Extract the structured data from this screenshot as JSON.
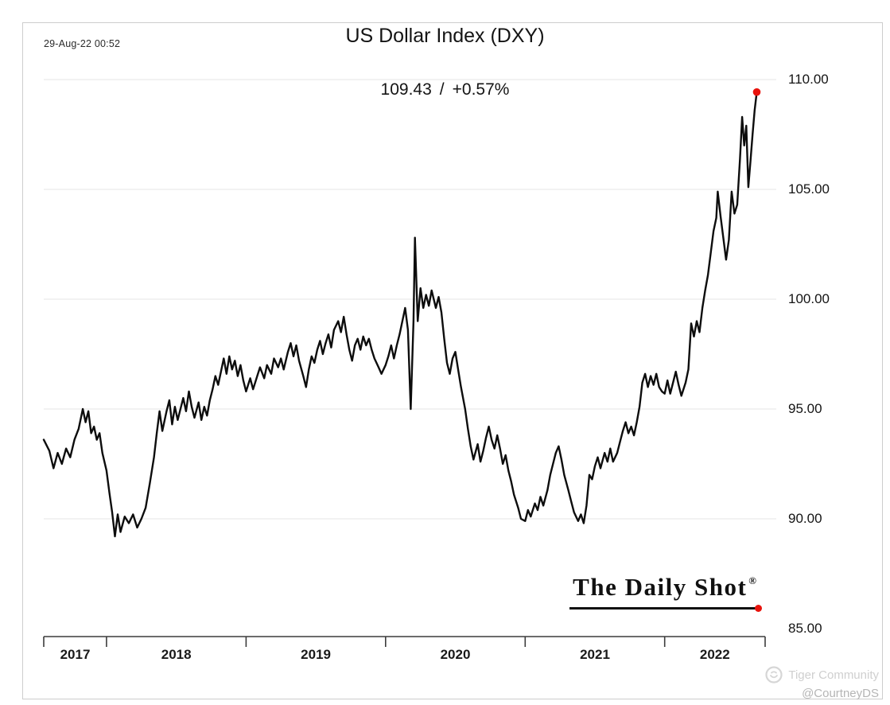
{
  "meta": {
    "timestamp": "29-Aug-22 00:52"
  },
  "title": "US Dollar Index (DXY)",
  "quote": {
    "price": "109.43",
    "separator": "/",
    "change": "+0.57%"
  },
  "branding": {
    "logo_text": "The Daily Shot",
    "registered": "®"
  },
  "watermark": {
    "community": "Tiger Community",
    "handle": "@CourtneyDS"
  },
  "chart_data": {
    "type": "line",
    "title": "US Dollar Index (DXY)",
    "subtitle": "109.43 / +0.57%",
    "x_unit": "decimal_year",
    "x_range": [
      2017.55,
      2022.72
    ],
    "y_range": [
      85,
      110
    ],
    "y_ticks": [
      85,
      90,
      95,
      100,
      105,
      110
    ],
    "y_tick_labels": [
      "85.00",
      "90.00",
      "95.00",
      "100.00",
      "105.00",
      "110.00"
    ],
    "x_tick_labels": [
      "2017",
      "2018",
      "2019",
      "2020",
      "2021",
      "2022"
    ],
    "grid": "horizontal",
    "legend": "none",
    "line_color": "#0d0d0d",
    "last_point_marker_color": "#e8130c",
    "last_value": 109.43,
    "points": [
      [
        2017.55,
        93.6
      ],
      [
        2017.59,
        93.1
      ],
      [
        2017.62,
        92.3
      ],
      [
        2017.65,
        93.0
      ],
      [
        2017.68,
        92.5
      ],
      [
        2017.71,
        93.2
      ],
      [
        2017.74,
        92.8
      ],
      [
        2017.77,
        93.6
      ],
      [
        2017.8,
        94.1
      ],
      [
        2017.83,
        95.0
      ],
      [
        2017.85,
        94.4
      ],
      [
        2017.87,
        94.9
      ],
      [
        2017.89,
        93.9
      ],
      [
        2017.91,
        94.2
      ],
      [
        2017.93,
        93.6
      ],
      [
        2017.95,
        93.9
      ],
      [
        2017.97,
        93.0
      ],
      [
        2018.0,
        92.2
      ],
      [
        2018.02,
        91.2
      ],
      [
        2018.04,
        90.3
      ],
      [
        2018.06,
        89.2
      ],
      [
        2018.08,
        90.2
      ],
      [
        2018.1,
        89.4
      ],
      [
        2018.13,
        90.1
      ],
      [
        2018.16,
        89.8
      ],
      [
        2018.19,
        90.2
      ],
      [
        2018.22,
        89.6
      ],
      [
        2018.25,
        90.0
      ],
      [
        2018.28,
        90.5
      ],
      [
        2018.31,
        91.6
      ],
      [
        2018.34,
        92.8
      ],
      [
        2018.36,
        93.9
      ],
      [
        2018.38,
        94.9
      ],
      [
        2018.4,
        94.0
      ],
      [
        2018.43,
        94.9
      ],
      [
        2018.45,
        95.4
      ],
      [
        2018.47,
        94.3
      ],
      [
        2018.49,
        95.1
      ],
      [
        2018.51,
        94.5
      ],
      [
        2018.53,
        95.0
      ],
      [
        2018.55,
        95.5
      ],
      [
        2018.57,
        94.9
      ],
      [
        2018.59,
        95.8
      ],
      [
        2018.61,
        95.1
      ],
      [
        2018.63,
        94.6
      ],
      [
        2018.66,
        95.3
      ],
      [
        2018.68,
        94.5
      ],
      [
        2018.7,
        95.1
      ],
      [
        2018.72,
        94.7
      ],
      [
        2018.74,
        95.4
      ],
      [
        2018.76,
        95.9
      ],
      [
        2018.78,
        96.5
      ],
      [
        2018.8,
        96.1
      ],
      [
        2018.82,
        96.7
      ],
      [
        2018.84,
        97.3
      ],
      [
        2018.86,
        96.6
      ],
      [
        2018.88,
        97.4
      ],
      [
        2018.9,
        96.8
      ],
      [
        2018.92,
        97.2
      ],
      [
        2018.94,
        96.5
      ],
      [
        2018.96,
        97.0
      ],
      [
        2018.98,
        96.3
      ],
      [
        2019.0,
        95.8
      ],
      [
        2019.03,
        96.4
      ],
      [
        2019.05,
        95.9
      ],
      [
        2019.08,
        96.5
      ],
      [
        2019.1,
        96.9
      ],
      [
        2019.13,
        96.4
      ],
      [
        2019.15,
        97.0
      ],
      [
        2019.18,
        96.6
      ],
      [
        2019.2,
        97.3
      ],
      [
        2019.23,
        96.9
      ],
      [
        2019.25,
        97.3
      ],
      [
        2019.27,
        96.8
      ],
      [
        2019.3,
        97.6
      ],
      [
        2019.32,
        98.0
      ],
      [
        2019.34,
        97.4
      ],
      [
        2019.36,
        97.9
      ],
      [
        2019.38,
        97.2
      ],
      [
        2019.41,
        96.5
      ],
      [
        2019.43,
        96.0
      ],
      [
        2019.45,
        96.8
      ],
      [
        2019.47,
        97.4
      ],
      [
        2019.49,
        97.1
      ],
      [
        2019.51,
        97.7
      ],
      [
        2019.53,
        98.1
      ],
      [
        2019.55,
        97.5
      ],
      [
        2019.57,
        98.0
      ],
      [
        2019.59,
        98.4
      ],
      [
        2019.61,
        97.8
      ],
      [
        2019.63,
        98.6
      ],
      [
        2019.66,
        99.0
      ],
      [
        2019.68,
        98.5
      ],
      [
        2019.7,
        99.2
      ],
      [
        2019.72,
        98.4
      ],
      [
        2019.74,
        97.7
      ],
      [
        2019.76,
        97.2
      ],
      [
        2019.78,
        97.9
      ],
      [
        2019.8,
        98.2
      ],
      [
        2019.82,
        97.7
      ],
      [
        2019.84,
        98.3
      ],
      [
        2019.86,
        97.9
      ],
      [
        2019.88,
        98.2
      ],
      [
        2019.9,
        97.7
      ],
      [
        2019.92,
        97.3
      ],
      [
        2019.95,
        96.9
      ],
      [
        2019.97,
        96.6
      ],
      [
        2020.0,
        97.0
      ],
      [
        2020.02,
        97.4
      ],
      [
        2020.04,
        97.9
      ],
      [
        2020.06,
        97.3
      ],
      [
        2020.08,
        97.9
      ],
      [
        2020.1,
        98.4
      ],
      [
        2020.12,
        99.0
      ],
      [
        2020.14,
        99.6
      ],
      [
        2020.16,
        98.6
      ],
      [
        2020.18,
        95.0
      ],
      [
        2020.2,
        99.0
      ],
      [
        2020.21,
        102.8
      ],
      [
        2020.23,
        99.0
      ],
      [
        2020.25,
        100.5
      ],
      [
        2020.27,
        99.6
      ],
      [
        2020.29,
        100.2
      ],
      [
        2020.31,
        99.7
      ],
      [
        2020.33,
        100.4
      ],
      [
        2020.36,
        99.6
      ],
      [
        2020.38,
        100.1
      ],
      [
        2020.4,
        99.4
      ],
      [
        2020.42,
        98.2
      ],
      [
        2020.44,
        97.1
      ],
      [
        2020.46,
        96.6
      ],
      [
        2020.48,
        97.3
      ],
      [
        2020.5,
        97.6
      ],
      [
        2020.52,
        96.8
      ],
      [
        2020.54,
        96.0
      ],
      [
        2020.57,
        95.0
      ],
      [
        2020.59,
        94.1
      ],
      [
        2020.61,
        93.3
      ],
      [
        2020.63,
        92.7
      ],
      [
        2020.66,
        93.4
      ],
      [
        2020.68,
        92.6
      ],
      [
        2020.7,
        93.1
      ],
      [
        2020.72,
        93.7
      ],
      [
        2020.74,
        94.2
      ],
      [
        2020.76,
        93.6
      ],
      [
        2020.78,
        93.2
      ],
      [
        2020.8,
        93.8
      ],
      [
        2020.82,
        93.2
      ],
      [
        2020.84,
        92.5
      ],
      [
        2020.86,
        92.9
      ],
      [
        2020.88,
        92.2
      ],
      [
        2020.9,
        91.7
      ],
      [
        2020.92,
        91.1
      ],
      [
        2020.95,
        90.5
      ],
      [
        2020.97,
        90.0
      ],
      [
        2021.0,
        89.9
      ],
      [
        2021.02,
        90.4
      ],
      [
        2021.04,
        90.1
      ],
      [
        2021.07,
        90.7
      ],
      [
        2021.09,
        90.4
      ],
      [
        2021.11,
        91.0
      ],
      [
        2021.13,
        90.6
      ],
      [
        2021.16,
        91.3
      ],
      [
        2021.18,
        92.0
      ],
      [
        2021.2,
        92.5
      ],
      [
        2021.22,
        93.0
      ],
      [
        2021.24,
        93.3
      ],
      [
        2021.26,
        92.7
      ],
      [
        2021.28,
        92.0
      ],
      [
        2021.31,
        91.3
      ],
      [
        2021.33,
        90.8
      ],
      [
        2021.35,
        90.3
      ],
      [
        2021.38,
        89.9
      ],
      [
        2021.4,
        90.2
      ],
      [
        2021.42,
        89.8
      ],
      [
        2021.44,
        90.6
      ],
      [
        2021.46,
        92.0
      ],
      [
        2021.48,
        91.8
      ],
      [
        2021.5,
        92.4
      ],
      [
        2021.52,
        92.8
      ],
      [
        2021.54,
        92.3
      ],
      [
        2021.57,
        93.0
      ],
      [
        2021.59,
        92.6
      ],
      [
        2021.61,
        93.2
      ],
      [
        2021.63,
        92.6
      ],
      [
        2021.66,
        93.0
      ],
      [
        2021.68,
        93.5
      ],
      [
        2021.7,
        94.0
      ],
      [
        2021.72,
        94.4
      ],
      [
        2021.74,
        93.9
      ],
      [
        2021.76,
        94.2
      ],
      [
        2021.78,
        93.8
      ],
      [
        2021.8,
        94.4
      ],
      [
        2021.82,
        95.1
      ],
      [
        2021.84,
        96.2
      ],
      [
        2021.86,
        96.6
      ],
      [
        2021.88,
        96.0
      ],
      [
        2021.9,
        96.5
      ],
      [
        2021.92,
        96.1
      ],
      [
        2021.94,
        96.6
      ],
      [
        2021.96,
        96.0
      ],
      [
        2021.98,
        95.8
      ],
      [
        2022.0,
        95.7
      ],
      [
        2022.02,
        96.3
      ],
      [
        2022.04,
        95.7
      ],
      [
        2022.06,
        96.2
      ],
      [
        2022.08,
        96.7
      ],
      [
        2022.1,
        96.1
      ],
      [
        2022.12,
        95.6
      ],
      [
        2022.15,
        96.2
      ],
      [
        2022.17,
        96.8
      ],
      [
        2022.19,
        98.9
      ],
      [
        2022.21,
        98.3
      ],
      [
        2022.23,
        99.0
      ],
      [
        2022.25,
        98.5
      ],
      [
        2022.27,
        99.6
      ],
      [
        2022.29,
        100.4
      ],
      [
        2022.31,
        101.1
      ],
      [
        2022.33,
        102.1
      ],
      [
        2022.35,
        103.1
      ],
      [
        2022.37,
        103.7
      ],
      [
        2022.38,
        104.9
      ],
      [
        2022.4,
        103.8
      ],
      [
        2022.42,
        102.8
      ],
      [
        2022.44,
        101.8
      ],
      [
        2022.46,
        102.7
      ],
      [
        2022.48,
        104.9
      ],
      [
        2022.5,
        103.9
      ],
      [
        2022.52,
        104.3
      ],
      [
        2022.54,
        106.4
      ],
      [
        2022.555,
        108.3
      ],
      [
        2022.57,
        107.0
      ],
      [
        2022.585,
        107.9
      ],
      [
        2022.6,
        105.1
      ],
      [
        2022.615,
        106.3
      ],
      [
        2022.63,
        107.5
      ],
      [
        2022.645,
        108.6
      ],
      [
        2022.66,
        109.43
      ]
    ]
  }
}
